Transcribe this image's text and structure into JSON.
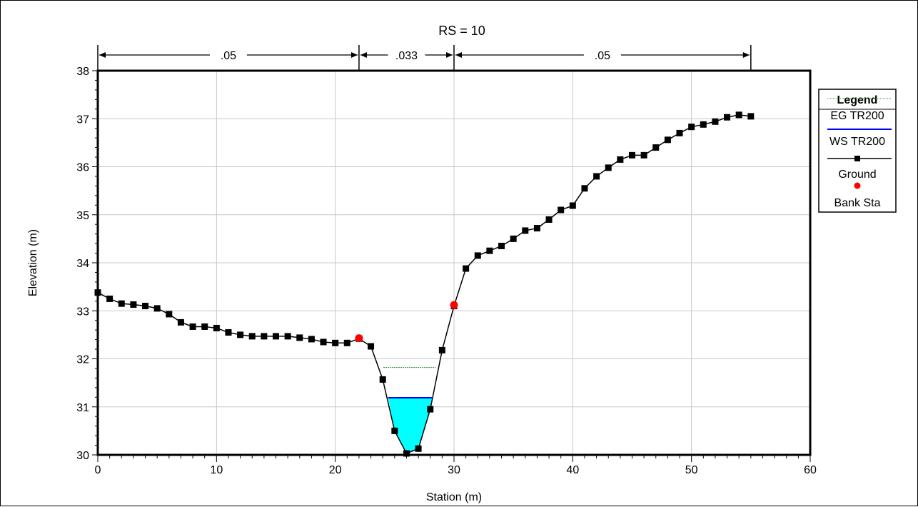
{
  "chart_data": {
    "type": "line",
    "title": "RS = 10",
    "xlabel": "Station (m)",
    "ylabel": "Elevation (m)",
    "xlim": [
      0,
      60
    ],
    "ylim": [
      30,
      38
    ],
    "xticks": [
      "0",
      "10",
      "20",
      "30",
      "40",
      "50",
      "60"
    ],
    "yticks": [
      "30",
      "31",
      "32",
      "33",
      "34",
      "35",
      "36",
      "37",
      "38"
    ],
    "grid": true,
    "legend_title": "Legend",
    "legend_placement": "right",
    "manning_n": [
      {
        "label": ".05",
        "from": 0,
        "to": 22
      },
      {
        "label": ".033",
        "from": 22,
        "to": 30
      },
      {
        "label": ".05",
        "from": 30,
        "to": 55
      }
    ],
    "series": [
      {
        "name": "EG TR200",
        "color": "#2e8b2e",
        "style": "dotted",
        "x": [
          24.05,
          28.45
        ],
        "y": [
          31.82,
          31.82
        ]
      },
      {
        "name": "WS TR200",
        "color": "#0000ff",
        "style": "solid",
        "x": [
          24.45,
          28.15
        ],
        "y": [
          31.19,
          31.19
        ]
      },
      {
        "name": "Ground",
        "color": "#000000",
        "style": "solid-square-markers",
        "x": [
          0,
          1,
          2,
          3,
          4,
          5,
          6,
          7,
          8,
          9,
          10,
          11,
          12,
          13,
          14,
          15,
          16,
          17,
          18,
          19,
          20,
          21,
          22,
          23,
          24,
          25,
          26,
          27,
          28,
          29,
          30,
          31,
          32,
          33,
          34,
          35,
          36,
          37,
          38,
          39,
          40,
          41,
          42,
          43,
          44,
          45,
          46,
          47,
          48,
          49,
          50,
          51,
          52,
          53,
          54,
          55
        ],
        "y": [
          33.38,
          33.25,
          33.15,
          33.13,
          33.1,
          33.05,
          32.93,
          32.76,
          32.67,
          32.67,
          32.64,
          32.55,
          32.5,
          32.47,
          32.47,
          32.47,
          32.47,
          32.44,
          32.41,
          32.35,
          32.33,
          32.33,
          32.42,
          32.26,
          31.57,
          30.5,
          30.03,
          30.13,
          30.95,
          32.18,
          33.1,
          33.88,
          34.15,
          34.25,
          34.35,
          34.5,
          34.67,
          34.72,
          34.9,
          35.1,
          35.19,
          35.55,
          35.8,
          35.98,
          36.15,
          36.24,
          36.24,
          36.4,
          36.56,
          36.7,
          36.83,
          36.88,
          36.94,
          37.03,
          37.08,
          37.05
        ]
      },
      {
        "name": "Bank Sta",
        "color": "#ff0000",
        "style": "markers",
        "x": [
          22,
          30
        ],
        "y": [
          32.43,
          33.12
        ]
      }
    ],
    "water_fill": {
      "color": "#00ffff",
      "polygon_x": [
        24.45,
        25.0,
        26.0,
        27.0,
        28.0,
        28.15
      ],
      "polygon_y": [
        31.19,
        30.5,
        30.03,
        30.13,
        30.95,
        31.19
      ]
    }
  }
}
